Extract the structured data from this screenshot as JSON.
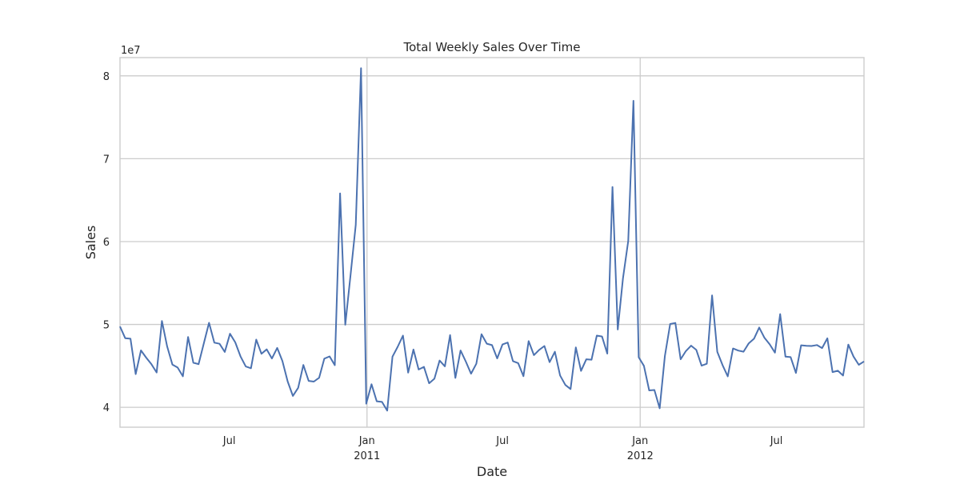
{
  "chart_data": {
    "type": "line",
    "title": "Total Weekly Sales Over Time",
    "xlabel": "Date",
    "ylabel": "Sales",
    "y_scale_label": "1e7",
    "ylim": [
      37600000,
      82200000
    ],
    "xlim": [
      "2010-02-05",
      "2012-10-26"
    ],
    "grid": true,
    "colors": {
      "line": "#4c72b0",
      "grid": "#cccccc",
      "text": "#262626"
    },
    "y_ticks": [
      {
        "value": 40000000,
        "label": "4"
      },
      {
        "value": 50000000,
        "label": "5"
      },
      {
        "value": 60000000,
        "label": "6"
      },
      {
        "value": 70000000,
        "label": "7"
      },
      {
        "value": 80000000,
        "label": "8"
      }
    ],
    "x_ticks": [
      {
        "date": "2010-07-01",
        "label": "Jul",
        "label2": "",
        "gridline": false
      },
      {
        "date": "2011-01-01",
        "label": "Jan",
        "label2": "2011",
        "gridline": true
      },
      {
        "date": "2011-07-01",
        "label": "Jul",
        "label2": "",
        "gridline": false
      },
      {
        "date": "2012-01-01",
        "label": "Jan",
        "label2": "2012",
        "gridline": true
      },
      {
        "date": "2012-07-01",
        "label": "Jul",
        "label2": "",
        "gridline": false
      }
    ],
    "series": [
      {
        "x": [
          "2010-02-05",
          "2010-02-12",
          "2010-02-19",
          "2010-02-26",
          "2010-03-05",
          "2010-03-12",
          "2010-03-19",
          "2010-03-26",
          "2010-04-02",
          "2010-04-09",
          "2010-04-16",
          "2010-04-23",
          "2010-04-30",
          "2010-05-07",
          "2010-05-14",
          "2010-05-21",
          "2010-05-28",
          "2010-06-04",
          "2010-06-11",
          "2010-06-18",
          "2010-06-25",
          "2010-07-02",
          "2010-07-09",
          "2010-07-16",
          "2010-07-23",
          "2010-07-30",
          "2010-08-06",
          "2010-08-13",
          "2010-08-20",
          "2010-08-27",
          "2010-09-03",
          "2010-09-10",
          "2010-09-17",
          "2010-09-24",
          "2010-10-01",
          "2010-10-08",
          "2010-10-15",
          "2010-10-22",
          "2010-10-29",
          "2010-11-05",
          "2010-11-12",
          "2010-11-19",
          "2010-11-26",
          "2010-12-03",
          "2010-12-10",
          "2010-12-17",
          "2010-12-24",
          "2010-12-31",
          "2011-01-07",
          "2011-01-14",
          "2011-01-21",
          "2011-01-28",
          "2011-02-04",
          "2011-02-11",
          "2011-02-18",
          "2011-02-25",
          "2011-03-04",
          "2011-03-11",
          "2011-03-18",
          "2011-03-25",
          "2011-04-01",
          "2011-04-08",
          "2011-04-15",
          "2011-04-22",
          "2011-04-29",
          "2011-05-06",
          "2011-05-13",
          "2011-05-20",
          "2011-05-27",
          "2011-06-03",
          "2011-06-10",
          "2011-06-17",
          "2011-06-24",
          "2011-07-01",
          "2011-07-08",
          "2011-07-15",
          "2011-07-22",
          "2011-07-29",
          "2011-08-05",
          "2011-08-12",
          "2011-08-19",
          "2011-08-26",
          "2011-09-02",
          "2011-09-09",
          "2011-09-16",
          "2011-09-23",
          "2011-09-30",
          "2011-10-07",
          "2011-10-14",
          "2011-10-21",
          "2011-10-28",
          "2011-11-04",
          "2011-11-11",
          "2011-11-18",
          "2011-11-25",
          "2011-12-02",
          "2011-12-09",
          "2011-12-16",
          "2011-12-23",
          "2011-12-30",
          "2012-01-06",
          "2012-01-13",
          "2012-01-20",
          "2012-01-27",
          "2012-02-03",
          "2012-02-10",
          "2012-02-17",
          "2012-02-24",
          "2012-03-02",
          "2012-03-09",
          "2012-03-16",
          "2012-03-23",
          "2012-03-30",
          "2012-04-06",
          "2012-04-13",
          "2012-04-20",
          "2012-04-27",
          "2012-05-04",
          "2012-05-11",
          "2012-05-18",
          "2012-05-25",
          "2012-06-01",
          "2012-06-08",
          "2012-06-15",
          "2012-06-22",
          "2012-06-29",
          "2012-07-06",
          "2012-07-13",
          "2012-07-20",
          "2012-07-27",
          "2012-08-03",
          "2012-08-10",
          "2012-08-17",
          "2012-08-24",
          "2012-08-31",
          "2012-09-07",
          "2012-09-14",
          "2012-09-21",
          "2012-09-28",
          "2012-10-05",
          "2012-10-12",
          "2012-10-19",
          "2012-10-26"
        ],
        "values": [
          49750000,
          48340000,
          48280000,
          44010000,
          46870000,
          46000000,
          45200000,
          44200000,
          50420000,
          47360000,
          45160000,
          44800000,
          43740000,
          48480000,
          45380000,
          45210000,
          47730000,
          50200000,
          47800000,
          47670000,
          46680000,
          48880000,
          47830000,
          46150000,
          44930000,
          44710000,
          48170000,
          46460000,
          46990000,
          45890000,
          47170000,
          45590000,
          43110000,
          41370000,
          42350000,
          45110000,
          43190000,
          43100000,
          43570000,
          45870000,
          46140000,
          45080000,
          65820000,
          49970000,
          55970000,
          62020000,
          80930000,
          40440000,
          42780000,
          40730000,
          40650000,
          39600000,
          46110000,
          47300000,
          48650000,
          44180000,
          46970000,
          44560000,
          44880000,
          42900000,
          43450000,
          45640000,
          44950000,
          48710000,
          43550000,
          46860000,
          45520000,
          44060000,
          45260000,
          48820000,
          47680000,
          47500000,
          45900000,
          47580000,
          47810000,
          45570000,
          45330000,
          43760000,
          47990000,
          46300000,
          46930000,
          47400000,
          45450000,
          46700000,
          43850000,
          42700000,
          42200000,
          47220000,
          44400000,
          45800000,
          45750000,
          48650000,
          48550000,
          46480000,
          66590000,
          49390000,
          55560000,
          60080000,
          76990000,
          46040000,
          45000000,
          42040000,
          42090000,
          39880000,
          46190000,
          50050000,
          50180000,
          45800000,
          46780000,
          47440000,
          46930000,
          45020000,
          45260000,
          53500000,
          46700000,
          45090000,
          43730000,
          47100000,
          46850000,
          46710000,
          47720000,
          48280000,
          49630000,
          48380000,
          47600000,
          46600000,
          51250000,
          46110000,
          46060000,
          44150000,
          47490000,
          47420000,
          47400000,
          47510000,
          47150000,
          48330000,
          44250000,
          44420000,
          43840000,
          47570000,
          46120000,
          45130000,
          45540000
        ]
      }
    ]
  }
}
